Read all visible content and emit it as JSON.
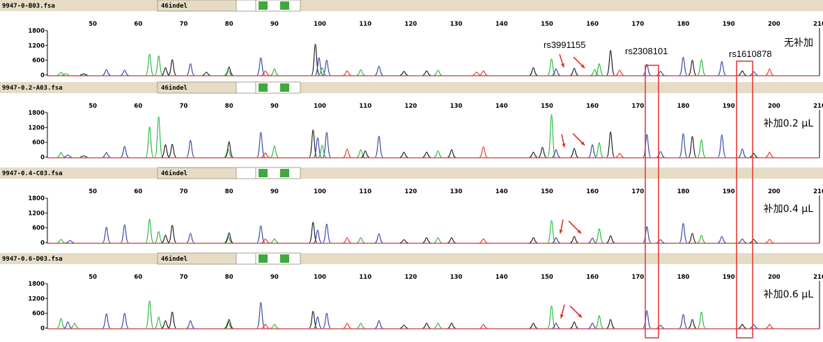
{
  "chart_data": {
    "type": "line",
    "subtype": "capillary electrophoresis electropherogram",
    "x_axis": {
      "min": 40,
      "max": 210,
      "ticks": [
        50,
        60,
        70,
        80,
        90,
        100,
        110,
        120,
        130,
        140,
        150,
        160,
        170,
        180,
        190,
        200,
        210
      ]
    },
    "y_axis": {
      "min": 0,
      "max": 1800,
      "ticks": [
        0,
        600,
        1200,
        1800
      ]
    },
    "dye_colors": {
      "blue": "#2a3fa0",
      "green": "#1fb53a",
      "black": "#111111",
      "red": "#e0302a"
    },
    "highlight_color": "#e0302a",
    "header_color": "#e6dcc6",
    "marker_color": "#3fa83f",
    "annotations": {
      "rs3991155": "rs3991155",
      "rs2308101": "rs2308101",
      "rs1610878": "rs1610878"
    },
    "panels": [
      {
        "file": "9947-0-B03.fsa",
        "panel_name": "46indel",
        "condition": "无补加",
        "peaks": [
          {
            "x": 43,
            "y": 110,
            "c": "green"
          },
          {
            "x": 44,
            "y": 60,
            "c": "green"
          },
          {
            "x": 48,
            "y": 50,
            "c": "black"
          },
          {
            "x": 53,
            "y": 220,
            "c": "blue"
          },
          {
            "x": 57,
            "y": 200,
            "c": "blue"
          },
          {
            "x": 62.5,
            "y": 850,
            "c": "green"
          },
          {
            "x": 64.5,
            "y": 780,
            "c": "green"
          },
          {
            "x": 66,
            "y": 300,
            "c": "black"
          },
          {
            "x": 67.5,
            "y": 620,
            "c": "black"
          },
          {
            "x": 71.5,
            "y": 460,
            "c": "blue"
          },
          {
            "x": 75,
            "y": 120,
            "c": "black"
          },
          {
            "x": 80,
            "y": 330,
            "c": "black"
          },
          {
            "x": 79.8,
            "y": 200,
            "c": "green"
          },
          {
            "x": 87,
            "y": 700,
            "c": "blue"
          },
          {
            "x": 88,
            "y": 170,
            "c": "red"
          },
          {
            "x": 90,
            "y": 250,
            "c": "green"
          },
          {
            "x": 99,
            "y": 1250,
            "c": "black"
          },
          {
            "x": 99.8,
            "y": 700,
            "c": "blue"
          },
          {
            "x": 101.5,
            "y": 600,
            "c": "blue"
          },
          {
            "x": 100.5,
            "y": 300,
            "c": "green"
          },
          {
            "x": 106,
            "y": 170,
            "c": "red"
          },
          {
            "x": 109,
            "y": 220,
            "c": "green"
          },
          {
            "x": 113,
            "y": 360,
            "c": "blue"
          },
          {
            "x": 118.5,
            "y": 150,
            "c": "black"
          },
          {
            "x": 123.5,
            "y": 170,
            "c": "black"
          },
          {
            "x": 126,
            "y": 200,
            "c": "green"
          },
          {
            "x": 134.5,
            "y": 120,
            "c": "red"
          },
          {
            "x": 136,
            "y": 170,
            "c": "red"
          },
          {
            "x": 147,
            "y": 300,
            "c": "black"
          },
          {
            "x": 151,
            "y": 650,
            "c": "green"
          },
          {
            "x": 152,
            "y": 250,
            "c": "blue"
          },
          {
            "x": 156,
            "y": 280,
            "c": "black"
          },
          {
            "x": 160.5,
            "y": 220,
            "c": "green"
          },
          {
            "x": 161.5,
            "y": 460,
            "c": "green"
          },
          {
            "x": 164,
            "y": 1000,
            "c": "black"
          },
          {
            "x": 166,
            "y": 200,
            "c": "red"
          },
          {
            "x": 172,
            "y": 430,
            "c": "blue"
          },
          {
            "x": 175,
            "y": 150,
            "c": "blue"
          },
          {
            "x": 180,
            "y": 720,
            "c": "blue"
          },
          {
            "x": 182,
            "y": 600,
            "c": "black"
          },
          {
            "x": 184,
            "y": 620,
            "c": "green"
          },
          {
            "x": 188.5,
            "y": 550,
            "c": "blue"
          },
          {
            "x": 193,
            "y": 170,
            "c": "black"
          },
          {
            "x": 195.5,
            "y": 140,
            "c": "blue"
          },
          {
            "x": 199,
            "y": 250,
            "c": "red"
          }
        ]
      },
      {
        "file": "9947-0.2-A03.fsa",
        "panel_name": "46indel",
        "condition": "补加0.2 µL",
        "peaks": [
          {
            "x": 43,
            "y": 180,
            "c": "green"
          },
          {
            "x": 44.5,
            "y": 90,
            "c": "blue"
          },
          {
            "x": 48,
            "y": 60,
            "c": "black"
          },
          {
            "x": 53,
            "y": 180,
            "c": "blue"
          },
          {
            "x": 57,
            "y": 430,
            "c": "blue"
          },
          {
            "x": 62.5,
            "y": 1230,
            "c": "green"
          },
          {
            "x": 64.5,
            "y": 1640,
            "c": "green"
          },
          {
            "x": 66,
            "y": 500,
            "c": "black"
          },
          {
            "x": 67.5,
            "y": 520,
            "c": "black"
          },
          {
            "x": 71.5,
            "y": 680,
            "c": "blue"
          },
          {
            "x": 79.8,
            "y": 330,
            "c": "green"
          },
          {
            "x": 80,
            "y": 620,
            "c": "black"
          },
          {
            "x": 87,
            "y": 1000,
            "c": "blue"
          },
          {
            "x": 88,
            "y": 170,
            "c": "red"
          },
          {
            "x": 90,
            "y": 450,
            "c": "green"
          },
          {
            "x": 98.5,
            "y": 1100,
            "c": "black"
          },
          {
            "x": 99.5,
            "y": 780,
            "c": "blue"
          },
          {
            "x": 101.5,
            "y": 1000,
            "c": "blue"
          },
          {
            "x": 100.5,
            "y": 480,
            "c": "green"
          },
          {
            "x": 106,
            "y": 330,
            "c": "red"
          },
          {
            "x": 109,
            "y": 300,
            "c": "green"
          },
          {
            "x": 110,
            "y": 250,
            "c": "black"
          },
          {
            "x": 113,
            "y": 850,
            "c": "blue"
          },
          {
            "x": 118.5,
            "y": 200,
            "c": "black"
          },
          {
            "x": 123.5,
            "y": 200,
            "c": "black"
          },
          {
            "x": 126,
            "y": 250,
            "c": "green"
          },
          {
            "x": 129,
            "y": 300,
            "c": "black"
          },
          {
            "x": 136,
            "y": 420,
            "c": "red"
          },
          {
            "x": 147,
            "y": 200,
            "c": "black"
          },
          {
            "x": 149,
            "y": 400,
            "c": "black"
          },
          {
            "x": 151,
            "y": 1720,
            "c": "green"
          },
          {
            "x": 152,
            "y": 300,
            "c": "blue"
          },
          {
            "x": 156,
            "y": 350,
            "c": "black"
          },
          {
            "x": 160,
            "y": 500,
            "c": "blue"
          },
          {
            "x": 161.5,
            "y": 580,
            "c": "green"
          },
          {
            "x": 164,
            "y": 1020,
            "c": "black"
          },
          {
            "x": 166,
            "y": 150,
            "c": "red"
          },
          {
            "x": 172,
            "y": 920,
            "c": "blue"
          },
          {
            "x": 175,
            "y": 230,
            "c": "blue"
          },
          {
            "x": 180,
            "y": 950,
            "c": "blue"
          },
          {
            "x": 182,
            "y": 840,
            "c": "black"
          },
          {
            "x": 184,
            "y": 700,
            "c": "green"
          },
          {
            "x": 188.5,
            "y": 900,
            "c": "blue"
          },
          {
            "x": 193,
            "y": 330,
            "c": "blue"
          },
          {
            "x": 195.5,
            "y": 150,
            "c": "black"
          },
          {
            "x": 199,
            "y": 200,
            "c": "red"
          }
        ]
      },
      {
        "file": "9947-0.4-C03.fsa",
        "panel_name": "46indel",
        "condition": "补加0.4 µL",
        "peaks": [
          {
            "x": 43,
            "y": 130,
            "c": "green"
          },
          {
            "x": 45,
            "y": 90,
            "c": "blue"
          },
          {
            "x": 53,
            "y": 620,
            "c": "blue"
          },
          {
            "x": 57,
            "y": 720,
            "c": "blue"
          },
          {
            "x": 62.5,
            "y": 950,
            "c": "green"
          },
          {
            "x": 64.5,
            "y": 450,
            "c": "green"
          },
          {
            "x": 66,
            "y": 300,
            "c": "black"
          },
          {
            "x": 67.5,
            "y": 700,
            "c": "black"
          },
          {
            "x": 71.5,
            "y": 380,
            "c": "blue"
          },
          {
            "x": 79.8,
            "y": 250,
            "c": "green"
          },
          {
            "x": 80,
            "y": 400,
            "c": "black"
          },
          {
            "x": 87,
            "y": 680,
            "c": "blue"
          },
          {
            "x": 88,
            "y": 150,
            "c": "red"
          },
          {
            "x": 90,
            "y": 150,
            "c": "green"
          },
          {
            "x": 98.5,
            "y": 820,
            "c": "black"
          },
          {
            "x": 99.5,
            "y": 500,
            "c": "blue"
          },
          {
            "x": 101.5,
            "y": 750,
            "c": "blue"
          },
          {
            "x": 106,
            "y": 200,
            "c": "red"
          },
          {
            "x": 109,
            "y": 200,
            "c": "green"
          },
          {
            "x": 113,
            "y": 360,
            "c": "blue"
          },
          {
            "x": 118.5,
            "y": 120,
            "c": "black"
          },
          {
            "x": 123.5,
            "y": 200,
            "c": "black"
          },
          {
            "x": 126,
            "y": 200,
            "c": "green"
          },
          {
            "x": 129,
            "y": 200,
            "c": "black"
          },
          {
            "x": 136,
            "y": 150,
            "c": "red"
          },
          {
            "x": 147,
            "y": 200,
            "c": "black"
          },
          {
            "x": 151,
            "y": 900,
            "c": "green"
          },
          {
            "x": 152,
            "y": 200,
            "c": "blue"
          },
          {
            "x": 156,
            "y": 250,
            "c": "black"
          },
          {
            "x": 160,
            "y": 180,
            "c": "blue"
          },
          {
            "x": 161.5,
            "y": 560,
            "c": "green"
          },
          {
            "x": 164,
            "y": 280,
            "c": "black"
          },
          {
            "x": 172,
            "y": 650,
            "c": "blue"
          },
          {
            "x": 175,
            "y": 120,
            "c": "blue"
          },
          {
            "x": 180,
            "y": 780,
            "c": "blue"
          },
          {
            "x": 182,
            "y": 380,
            "c": "black"
          },
          {
            "x": 184,
            "y": 300,
            "c": "green"
          },
          {
            "x": 188.5,
            "y": 250,
            "c": "blue"
          },
          {
            "x": 193,
            "y": 150,
            "c": "blue"
          },
          {
            "x": 195.5,
            "y": 130,
            "c": "black"
          },
          {
            "x": 199,
            "y": 130,
            "c": "red"
          }
        ]
      },
      {
        "file": "9947-0.6-D03.fsa",
        "panel_name": "46indel",
        "condition": "补加0.6 µL",
        "peaks": [
          {
            "x": 43,
            "y": 400,
            "c": "green"
          },
          {
            "x": 44.5,
            "y": 250,
            "c": "blue"
          },
          {
            "x": 46,
            "y": 200,
            "c": "green"
          },
          {
            "x": 53,
            "y": 580,
            "c": "blue"
          },
          {
            "x": 57,
            "y": 600,
            "c": "blue"
          },
          {
            "x": 62.5,
            "y": 1100,
            "c": "green"
          },
          {
            "x": 64.5,
            "y": 450,
            "c": "green"
          },
          {
            "x": 66,
            "y": 300,
            "c": "black"
          },
          {
            "x": 67.5,
            "y": 650,
            "c": "black"
          },
          {
            "x": 71.5,
            "y": 300,
            "c": "blue"
          },
          {
            "x": 79.8,
            "y": 250,
            "c": "green"
          },
          {
            "x": 80,
            "y": 350,
            "c": "black"
          },
          {
            "x": 87,
            "y": 1040,
            "c": "blue"
          },
          {
            "x": 88,
            "y": 150,
            "c": "red"
          },
          {
            "x": 90,
            "y": 150,
            "c": "green"
          },
          {
            "x": 98.5,
            "y": 680,
            "c": "black"
          },
          {
            "x": 99.5,
            "y": 450,
            "c": "blue"
          },
          {
            "x": 101.5,
            "y": 600,
            "c": "blue"
          },
          {
            "x": 106,
            "y": 200,
            "c": "red"
          },
          {
            "x": 109,
            "y": 200,
            "c": "green"
          },
          {
            "x": 113,
            "y": 300,
            "c": "blue"
          },
          {
            "x": 118.5,
            "y": 120,
            "c": "black"
          },
          {
            "x": 123.5,
            "y": 200,
            "c": "black"
          },
          {
            "x": 126,
            "y": 200,
            "c": "green"
          },
          {
            "x": 129,
            "y": 200,
            "c": "black"
          },
          {
            "x": 136,
            "y": 150,
            "c": "red"
          },
          {
            "x": 147,
            "y": 200,
            "c": "black"
          },
          {
            "x": 151,
            "y": 900,
            "c": "green"
          },
          {
            "x": 152,
            "y": 200,
            "c": "blue"
          },
          {
            "x": 156,
            "y": 250,
            "c": "black"
          },
          {
            "x": 160,
            "y": 200,
            "c": "blue"
          },
          {
            "x": 161.5,
            "y": 500,
            "c": "green"
          },
          {
            "x": 164,
            "y": 350,
            "c": "black"
          },
          {
            "x": 172,
            "y": 700,
            "c": "blue"
          },
          {
            "x": 175,
            "y": 120,
            "c": "blue"
          },
          {
            "x": 180,
            "y": 550,
            "c": "blue"
          },
          {
            "x": 182,
            "y": 350,
            "c": "black"
          },
          {
            "x": 184,
            "y": 650,
            "c": "green"
          },
          {
            "x": 193,
            "y": 150,
            "c": "black"
          },
          {
            "x": 195.5,
            "y": 150,
            "c": "blue"
          },
          {
            "x": 199,
            "y": 150,
            "c": "red"
          }
        ]
      }
    ]
  }
}
